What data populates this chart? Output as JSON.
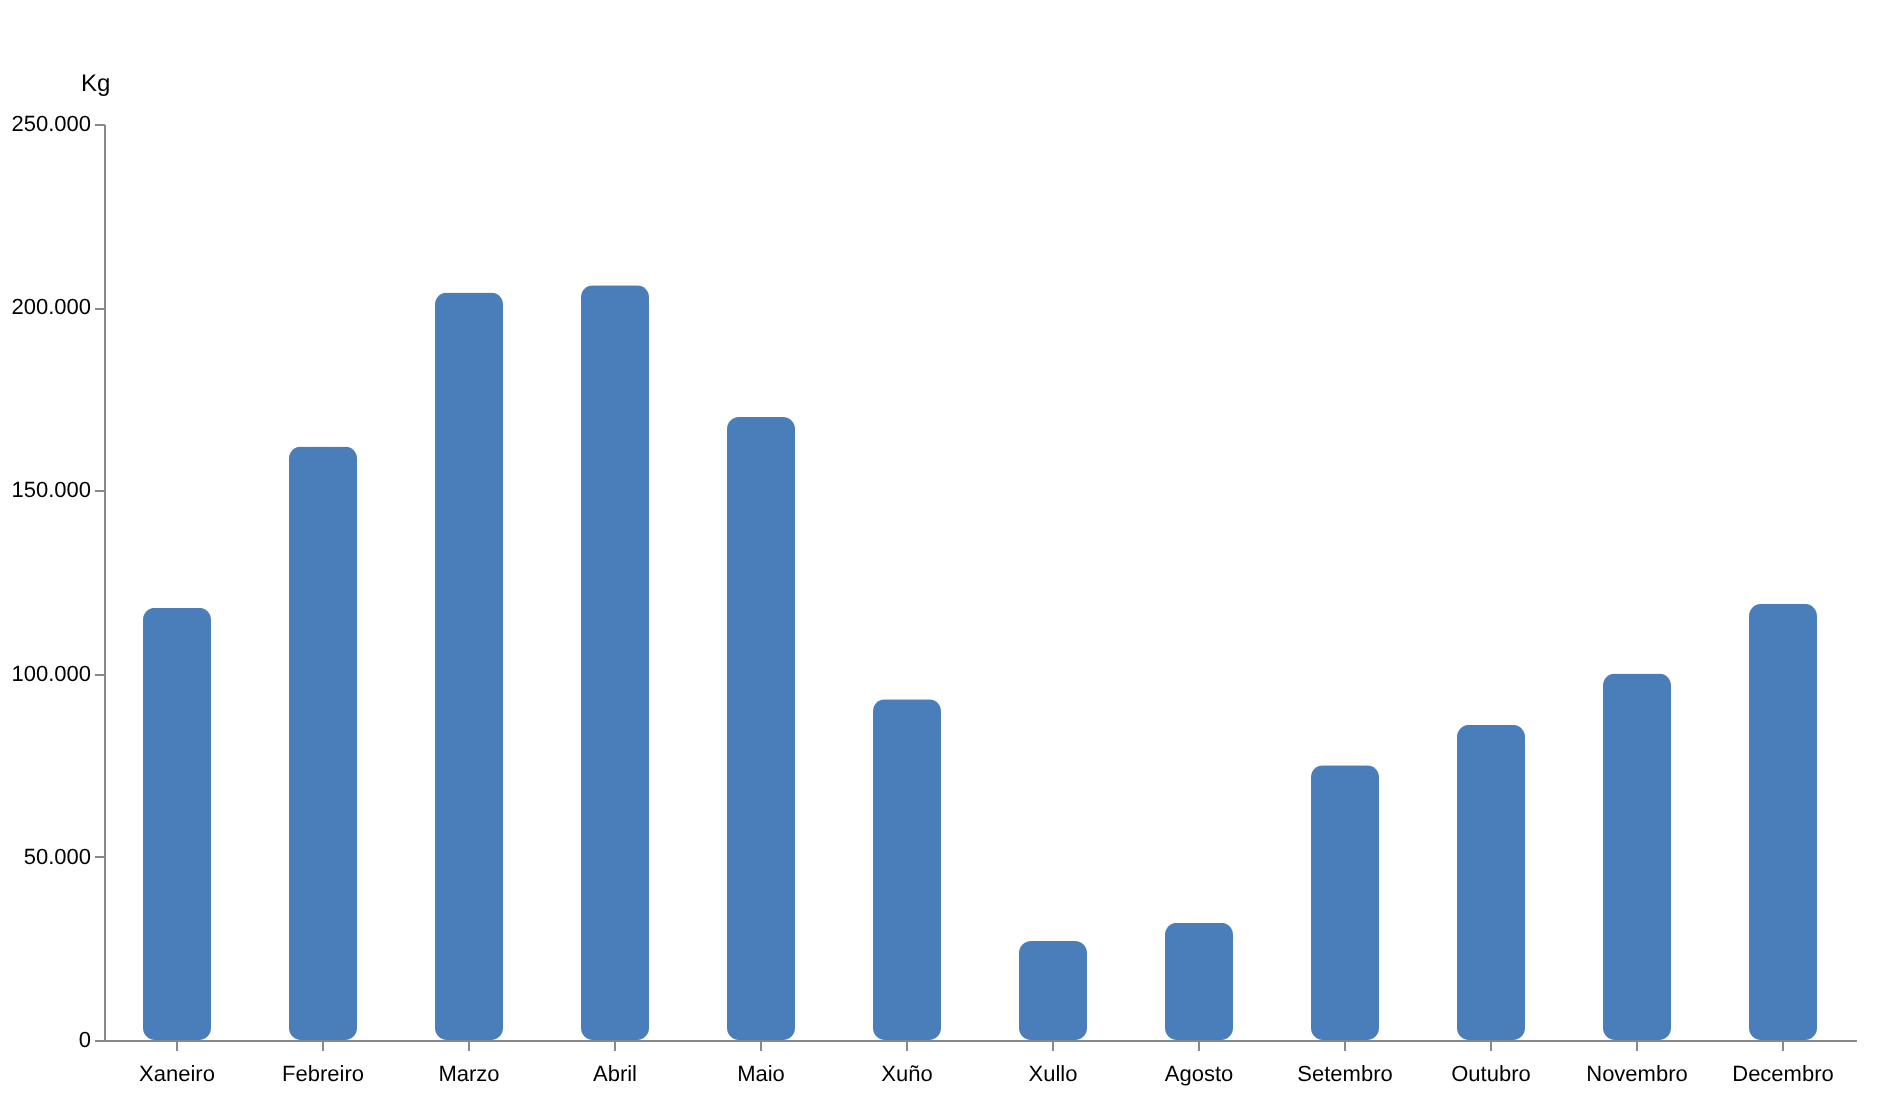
{
  "chart_data": {
    "type": "bar",
    "ylabel": "Kg",
    "categories": [
      "Xaneiro",
      "Febreiro",
      "Marzo",
      "Abril",
      "Maio",
      "Xuño",
      "Xullo",
      "Agosto",
      "Setembro",
      "Outubro",
      "Novembro",
      "Decembro"
    ],
    "values": [
      118000,
      162000,
      204000,
      206000,
      170000,
      93000,
      27000,
      32000,
      75000,
      86000,
      100000,
      119000
    ],
    "color": "#4a7ebb",
    "ylim": [
      0,
      250000
    ],
    "yticks": [
      {
        "value": 0,
        "label": "0"
      },
      {
        "value": 50000,
        "label": "50.000"
      },
      {
        "value": 100000,
        "label": "100.000"
      },
      {
        "value": 150000,
        "label": "150.000"
      },
      {
        "value": 200000,
        "label": "200.000"
      },
      {
        "value": 250000,
        "label": "250.000"
      }
    ],
    "grid": false
  }
}
